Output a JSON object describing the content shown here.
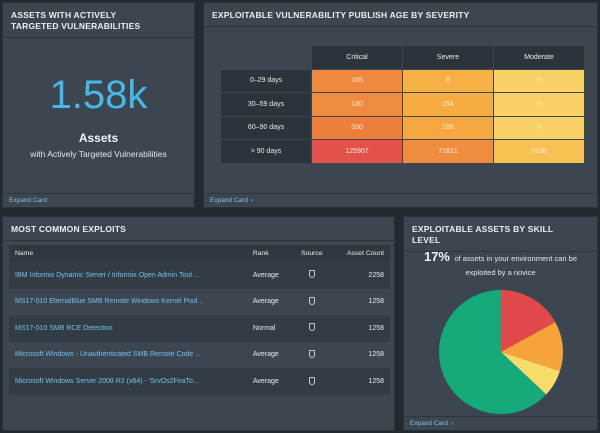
{
  "card_targeted": {
    "title_line1": "ASSETS WITH ACTIVELY",
    "title_line2": "TARGETED VULNERABILITIES",
    "big_number": "1.58k",
    "label": "Assets",
    "sublabel": "with Actively Targeted Vulnerabilities",
    "expand": "Expand Card"
  },
  "card_publish_age": {
    "title": "EXPLOITABLE VULNERABILITY PUBLISH AGE BY SEVERITY",
    "columns": [
      "Critical",
      "Severe",
      "Moderate"
    ],
    "rows": [
      {
        "label": "0–29 days",
        "values": [
          "165",
          "8",
          "0"
        ],
        "colors": [
          "#f0883e",
          "#f6b144",
          "#f8d064"
        ]
      },
      {
        "label": "30–59 days",
        "values": [
          "130",
          "154",
          "0"
        ],
        "colors": [
          "#f08a3f",
          "#f5ad42",
          "#f8d064"
        ]
      },
      {
        "label": "60–90 days",
        "values": [
          "330",
          "169",
          "0"
        ],
        "colors": [
          "#ee7e3c",
          "#f4a83f",
          "#f8d064"
        ]
      },
      {
        "label": "> 90 days",
        "values": [
          "125907",
          "71821",
          "5136"
        ],
        "colors": [
          "#e4514a",
          "#f08d3d",
          "#f7c253"
        ]
      }
    ],
    "expand": "Expand Card",
    "expand_icon": "chevron-right-icon"
  },
  "card_exploits": {
    "title": "MOST COMMON EXPLOITS",
    "headers": {
      "name": "Name",
      "rank": "Rank",
      "source": "Source",
      "count": "Asset Count"
    },
    "rows": [
      {
        "name": "IBM Informix Dynamic Server / Informix Open Admin Tool ...",
        "rank": "Average",
        "source_icon": "flask-icon",
        "count": "2258"
      },
      {
        "name": "MS17-010 EternalBlue SMB Remote Windows Kernel Pool...",
        "rank": "Average",
        "source_icon": "metasploit-icon",
        "count": "1258"
      },
      {
        "name": "MS17-010 SMB RCE Detection",
        "rank": "Normal",
        "source_icon": "metasploit-icon",
        "count": "1258"
      },
      {
        "name": "Microsoft Windows - Unauthenticated SMB Remote Code ...",
        "rank": "Average",
        "source_icon": "flask-icon",
        "count": "1258"
      },
      {
        "name": "Microsoft Windows Server 2008 R2 (x64) - 'SrvOs2FeaTo...",
        "rank": "Average",
        "source_icon": "flask-icon",
        "count": "1258"
      }
    ]
  },
  "card_skill": {
    "title_line1": "EXPLOITABLE ASSETS BY SKILL",
    "title_line2": "LEVEL",
    "percent": "17%",
    "percent_text": "of assets in your environment can be exploited by a novice",
    "expand": "Expand Card",
    "expand_icon": "chevron-right-icon",
    "chart_data": {
      "type": "pie",
      "values": [
        0.17,
        0.13,
        0.07,
        0.63
      ],
      "colors": [
        "#e2494a",
        "#f5a33a",
        "#f7dc6a",
        "#16a97a"
      ]
    }
  }
}
